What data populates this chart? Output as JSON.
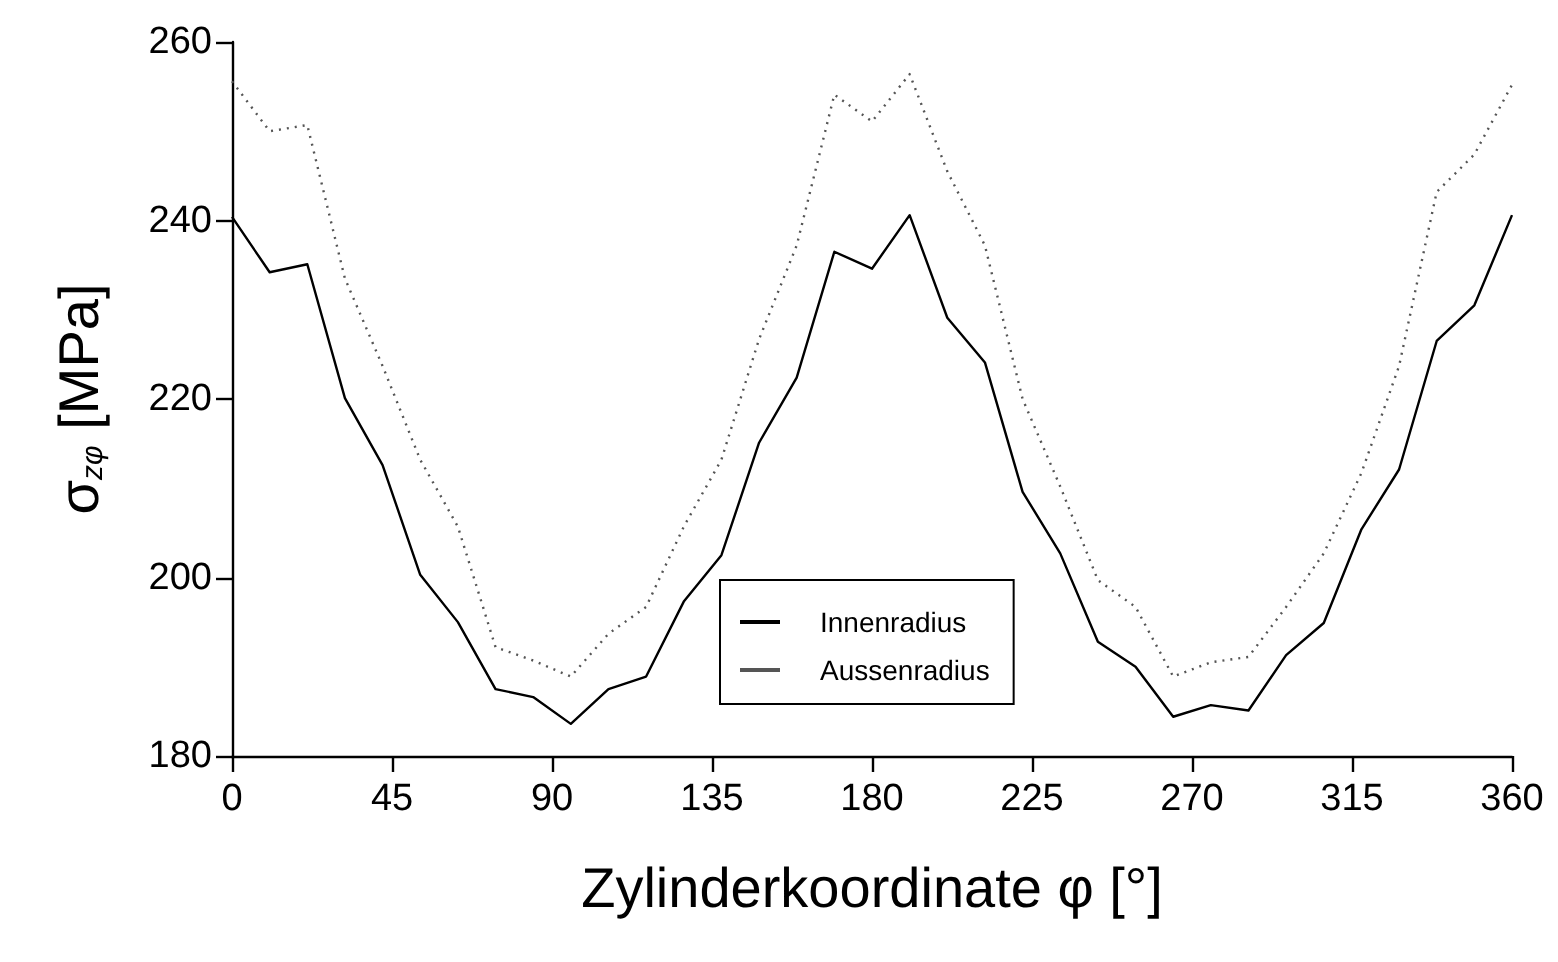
{
  "chart_data": {
    "type": "line",
    "xlabel": "Zylinderkoordinate φ [°]",
    "ylabel": "σ$_{zφ}$ [MPa]",
    "x": [
      0,
      10.59,
      21.18,
      31.76,
      42.35,
      52.94,
      63.53,
      74.12,
      84.71,
      95.29,
      105.88,
      116.47,
      127.06,
      137.65,
      148.24,
      158.82,
      169.41,
      180,
      190.59,
      201.18,
      211.76,
      222.35,
      232.94,
      243.53,
      254.12,
      264.71,
      275.29,
      285.88,
      296.47,
      307.06,
      317.65,
      328.24,
      338.82,
      349.41,
      360
    ],
    "xlim": [
      0,
      360
    ],
    "xticks": [
      0,
      45,
      90,
      135,
      180,
      225,
      270,
      315,
      360
    ],
    "ylim": [
      180,
      260
    ],
    "yticks": [
      180,
      200,
      220,
      240,
      260
    ],
    "grid": false,
    "legend": "bottom",
    "marker": "none",
    "series": [
      {
        "name": "Innenradius",
        "color": "#000000",
        "line_style": "solid",
        "values": [
          240.4,
          234.2,
          235.1,
          220.1,
          212.6,
          200.3,
          195.0,
          187.5,
          186.6,
          183.6,
          187.5,
          188.9,
          197.3,
          202.5,
          215.1,
          222.4,
          236.5,
          234.6,
          240.6,
          229.1,
          224.1,
          209.6,
          202.7,
          192.8,
          190.0,
          184.4,
          185.7,
          185.1,
          191.3,
          194.9,
          205.4,
          212.1,
          226.5,
          230.5,
          240.6
        ]
      },
      {
        "name": "Aussenradius",
        "color": "#555555",
        "line_style": "dotted",
        "values": [
          255.6,
          250.0,
          250.7,
          233.5,
          223.7,
          213.2,
          205.7,
          192.2,
          190.7,
          188.9,
          193.7,
          196.7,
          205.7,
          213.2,
          226.7,
          237.2,
          254.1,
          251.1,
          256.4,
          245.5,
          237.2,
          220.0,
          210.2,
          199.7,
          196.7,
          188.9,
          190.5,
          191.1,
          196.7,
          202.7,
          211.7,
          223.7,
          243.2,
          247.4,
          255.2
        ]
      }
    ]
  }
}
